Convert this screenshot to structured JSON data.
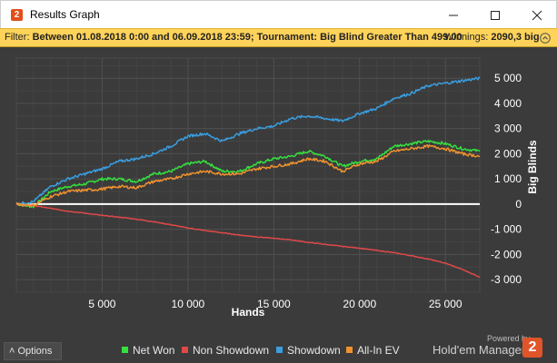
{
  "window": {
    "title": "Results Graph",
    "icon_glyph": "2",
    "controls": [
      "minimize-icon",
      "maximize-icon",
      "close-icon"
    ]
  },
  "filter": {
    "label": "Filter:",
    "value": "Between 01.08.2018 0:00 and 06.09.2018 23:59; Tournament: Big Blind Greater Than 499.00",
    "winnings_label": "Winnings:",
    "winnings_value": "2090,3 big",
    "collapse_icon": "chevron-up-circle-icon"
  },
  "chart_data": {
    "type": "line",
    "xlabel": "Hands",
    "ylabel": "Big Blinds",
    "xlim": [
      0,
      27000
    ],
    "ylim": [
      -3500,
      5800
    ],
    "x_ticks": [
      5000,
      10000,
      15000,
      20000,
      25000
    ],
    "x_tick_labels": [
      "5 000",
      "10 000",
      "15 000",
      "20 000",
      "25 000"
    ],
    "y_ticks": [
      -3000,
      -2000,
      -1000,
      0,
      1000,
      2000,
      3000,
      4000,
      5000
    ],
    "y_tick_labels": [
      "-3 000",
      "-2 000",
      "-1 000",
      "0",
      "1 000",
      "2 000",
      "3 000",
      "4 000",
      "5 000"
    ],
    "grid": true,
    "legend_position": "bottom",
    "x": [
      0,
      1000,
      2000,
      3000,
      4000,
      5000,
      6000,
      7000,
      8000,
      9000,
      10000,
      11000,
      12000,
      13000,
      14000,
      15000,
      16000,
      17000,
      18000,
      19000,
      20000,
      21000,
      22000,
      23000,
      24000,
      25000,
      26000,
      27000
    ],
    "series": [
      {
        "name": "Net Won",
        "color": "#35e03f",
        "values": [
          0,
          -100,
          500,
          700,
          800,
          1000,
          1000,
          900,
          1200,
          1300,
          1600,
          1700,
          1300,
          1300,
          1600,
          1800,
          1900,
          2100,
          1900,
          1500,
          1700,
          1800,
          2300,
          2400,
          2500,
          2400,
          2200,
          2100
        ]
      },
      {
        "name": "Non Showdown",
        "color": "#e04848",
        "values": [
          0,
          -60,
          -170,
          -280,
          -360,
          -450,
          -520,
          -600,
          -700,
          -820,
          -950,
          -1050,
          -1140,
          -1230,
          -1300,
          -1360,
          -1420,
          -1520,
          -1600,
          -1680,
          -1750,
          -1840,
          -1930,
          -2050,
          -2180,
          -2350,
          -2600,
          -2900
        ]
      },
      {
        "name": "Showdown",
        "color": "#3a9ee0",
        "values": [
          0,
          100,
          700,
          1000,
          1200,
          1400,
          1700,
          1800,
          2000,
          2300,
          2700,
          2800,
          2500,
          2800,
          3000,
          3100,
          3400,
          3500,
          3400,
          3300,
          3600,
          3800,
          4200,
          4400,
          4700,
          4800,
          4900,
          5000
        ]
      },
      {
        "name": "All-In EV",
        "color": "#f0922e",
        "values": [
          0,
          -50,
          300,
          500,
          550,
          600,
          700,
          650,
          900,
          1000,
          1200,
          1300,
          1200,
          1200,
          1400,
          1500,
          1600,
          1800,
          1700,
          1300,
          1600,
          1700,
          2100,
          2200,
          2300,
          2200,
          2000,
          1900
        ]
      }
    ]
  },
  "options": {
    "label": "Options",
    "icon": "chevron-up-icon"
  },
  "brand": {
    "powered": "Powered by",
    "name": "Hold'em Manager",
    "logo_glyph": "2"
  }
}
